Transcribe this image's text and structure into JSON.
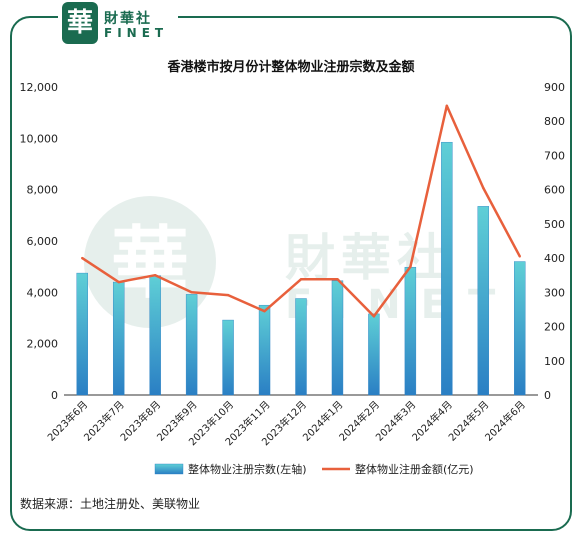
{
  "brand": {
    "seal_char": "華",
    "name_cn": "財華社",
    "name_en": "FINET"
  },
  "colors": {
    "frame": "#1a6b50",
    "bar_top": "#5fcfd6",
    "bar_bottom": "#2a7fc4",
    "line": "#e8603c"
  },
  "chart_data": {
    "type": "bar+line",
    "title": "香港楼市按月份计整体物业注册宗数及金额",
    "categories": [
      "2023年6月",
      "2023年7月",
      "2023年8月",
      "2023年9月",
      "2023年10月",
      "2023年11月",
      "2023年12月",
      "2024年1月",
      "2024年2月",
      "2024年3月",
      "2024年4月",
      "2024年5月",
      "2024年6月"
    ],
    "series": [
      {
        "name": "整体物业注册宗数(左轴)",
        "type": "bar",
        "axis": "left",
        "values": [
          4750,
          4400,
          4650,
          3920,
          2920,
          3500,
          3760,
          4450,
          3160,
          4980,
          9850,
          7350,
          5200
        ]
      },
      {
        "name": "整体物业注册金额(亿元)",
        "type": "line",
        "axis": "right",
        "values": [
          400,
          330,
          350,
          300,
          292,
          245,
          338,
          338,
          230,
          375,
          845,
          605,
          405
        ]
      }
    ],
    "left_axis": {
      "min": 0,
      "max": 12000,
      "ticks": [
        0,
        2000,
        4000,
        6000,
        8000,
        10000,
        12000
      ],
      "tick_labels": [
        "0",
        "2,000",
        "4,000",
        "6,000",
        "8,000",
        "10,000",
        "12,000"
      ]
    },
    "right_axis": {
      "min": 0,
      "max": 900,
      "ticks": [
        0,
        100,
        200,
        300,
        400,
        500,
        600,
        700,
        800,
        900
      ],
      "tick_labels": [
        "0",
        "100",
        "200",
        "300",
        "400",
        "500",
        "600",
        "700",
        "800",
        "900"
      ]
    },
    "legend_position": "bottom",
    "grid": false
  },
  "source_text": "数据来源：土地注册处、美联物业"
}
